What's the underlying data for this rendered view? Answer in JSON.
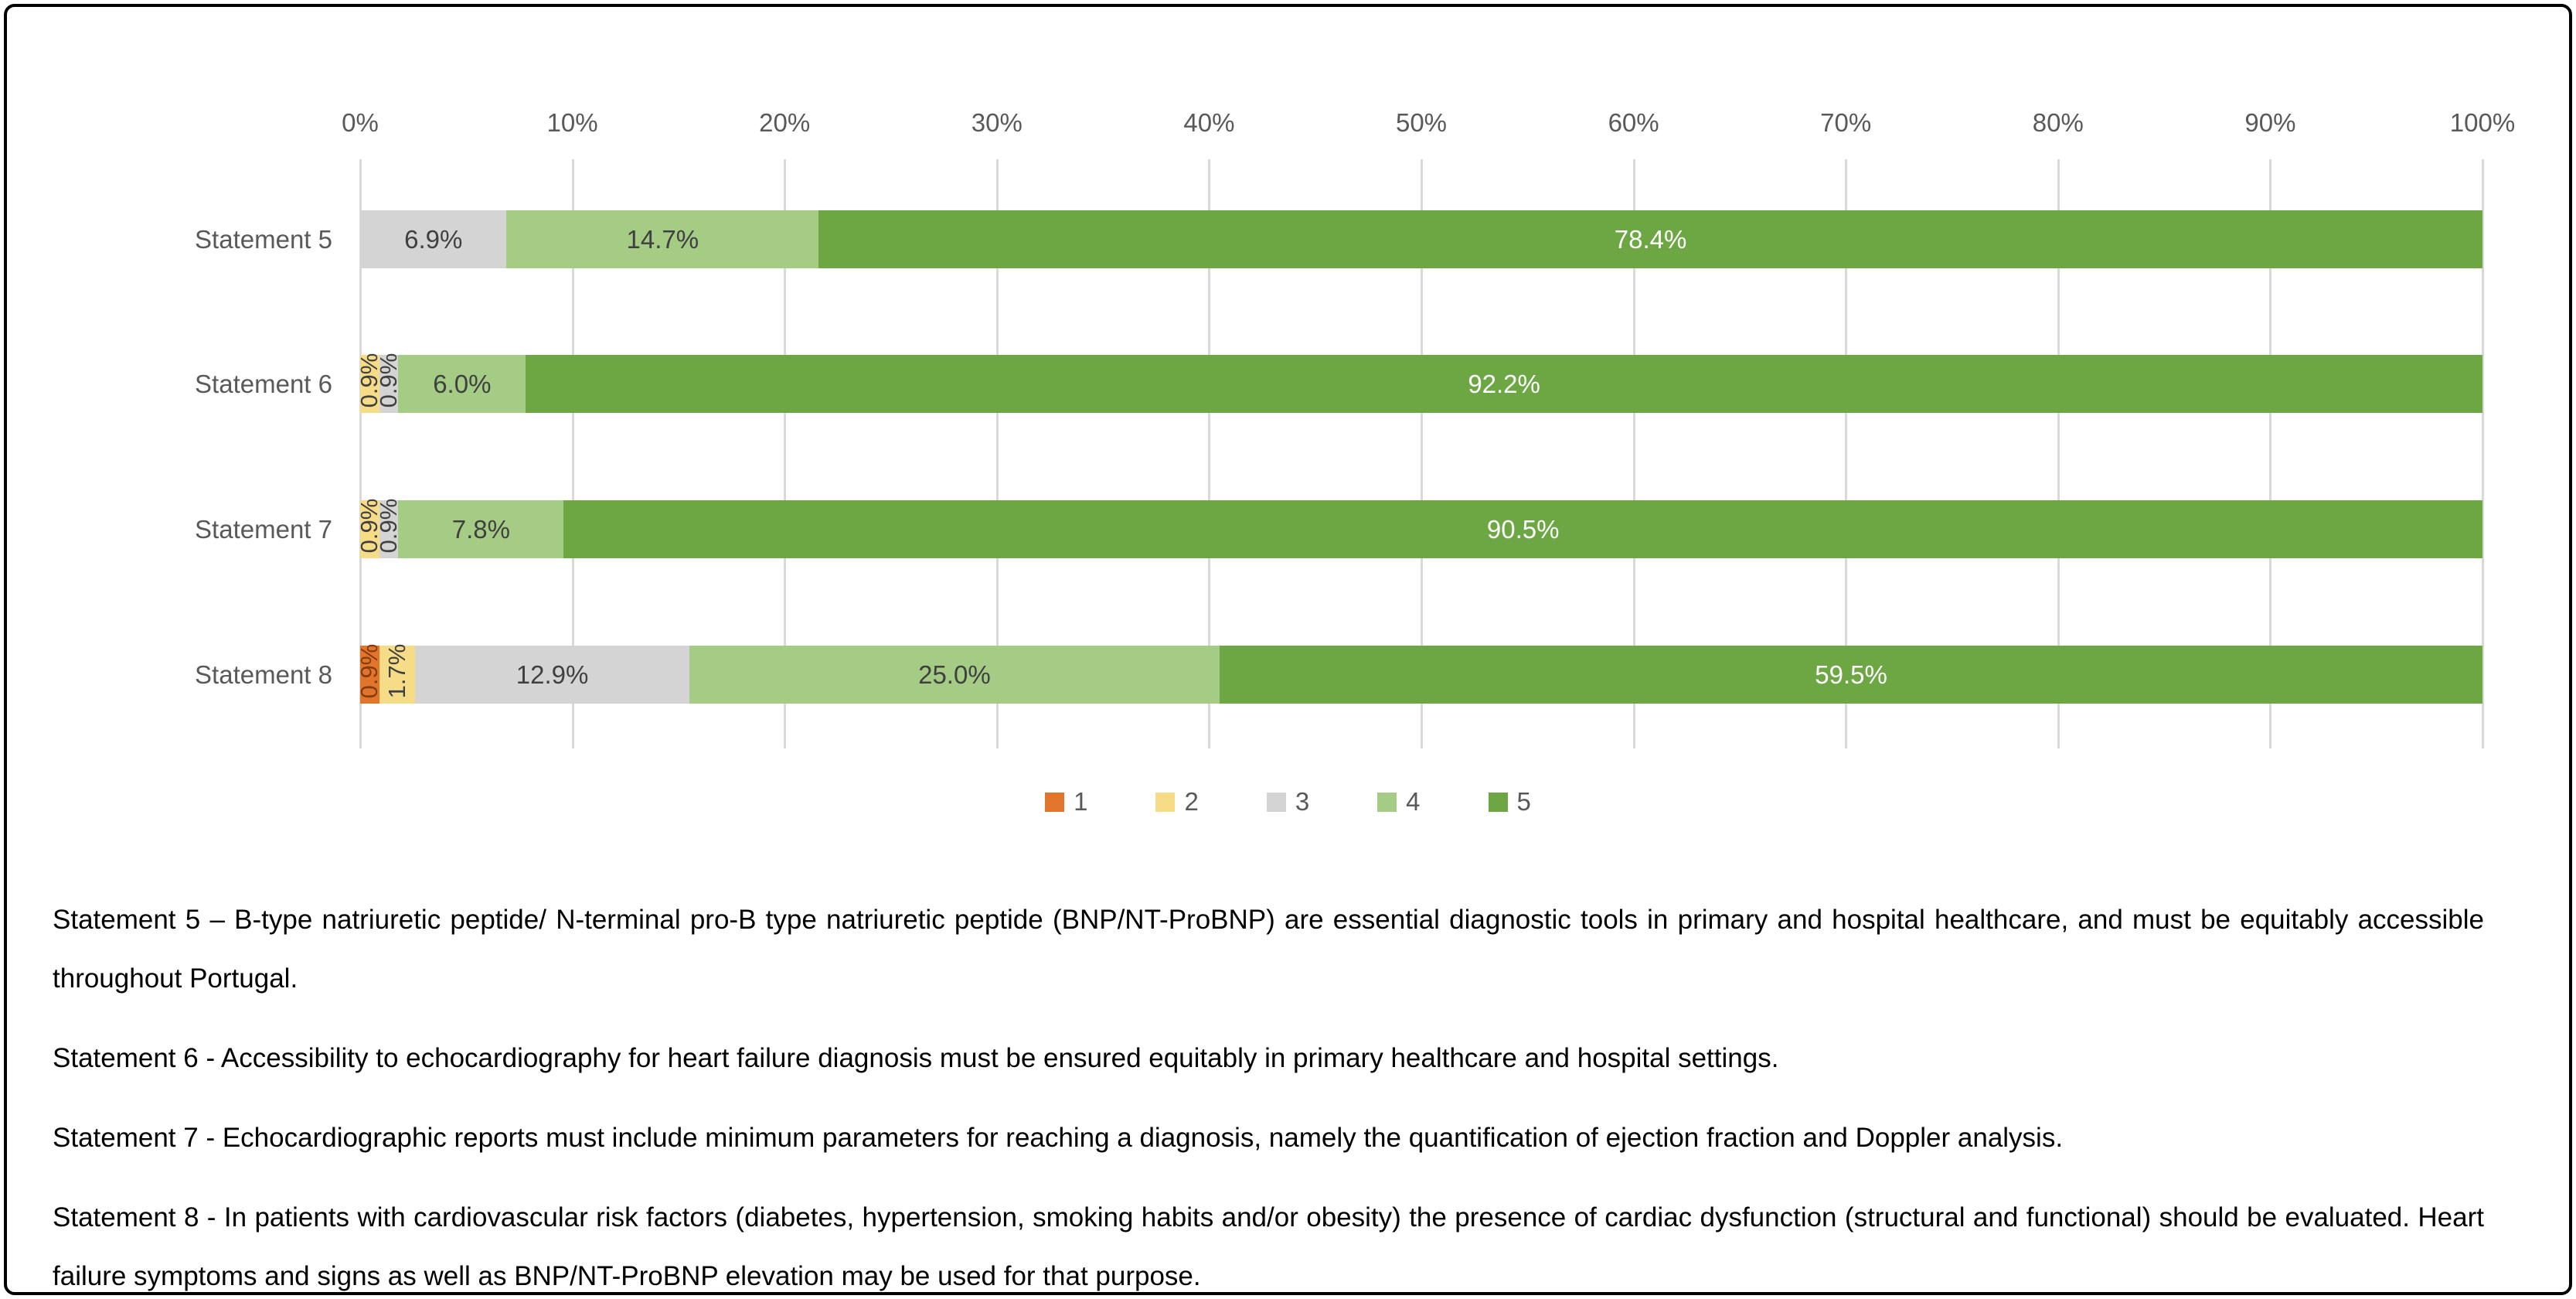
{
  "chart_data": {
    "type": "bar",
    "variant": "horizontal-stacked-100pct",
    "title": "",
    "xlabel": "",
    "ylabel": "",
    "x_axis": {
      "min": 0,
      "max": 100,
      "ticks": [
        "0%",
        "10%",
        "20%",
        "30%",
        "40%",
        "50%",
        "60%",
        "70%",
        "80%",
        "90%",
        "100%"
      ],
      "grid": true
    },
    "legend_position": "bottom",
    "legend": [
      {
        "label": "1",
        "color": "#e1752c"
      },
      {
        "label": "2",
        "color": "#f6dc86"
      },
      {
        "label": "3",
        "color": "#d4d4d4"
      },
      {
        "label": "4",
        "color": "#a4cc85"
      },
      {
        "label": "5",
        "color": "#6ca744"
      }
    ],
    "categories": [
      "Statement 5",
      "Statement 6",
      "Statement 7",
      "Statement 8"
    ],
    "series": [
      {
        "name": "1",
        "color": "#e1752c",
        "values": [
          0,
          0,
          0,
          0.9
        ]
      },
      {
        "name": "2",
        "color": "#f6dc86",
        "values": [
          0,
          0.9,
          0.9,
          1.7
        ]
      },
      {
        "name": "3",
        "color": "#d4d4d4",
        "values": [
          6.9,
          0.9,
          0.9,
          12.9
        ]
      },
      {
        "name": "4",
        "color": "#a4cc85",
        "values": [
          14.7,
          6.0,
          7.8,
          25.0
        ]
      },
      {
        "name": "5",
        "color": "#6ca744",
        "values": [
          78.4,
          92.2,
          90.5,
          59.5
        ]
      }
    ],
    "rows": [
      {
        "category": "Statement 5",
        "segments": [
          {
            "level": "3",
            "value": 6.9,
            "label": "6.9%",
            "rotated": false,
            "label_color": "#404040"
          },
          {
            "level": "4",
            "value": 14.7,
            "label": "14.7%",
            "rotated": false,
            "label_color": "#404040"
          },
          {
            "level": "5",
            "value": 78.4,
            "label": "78.4%",
            "rotated": false,
            "label_color": "#ffffff"
          }
        ]
      },
      {
        "category": "Statement 6",
        "segments": [
          {
            "level": "2",
            "value": 0.9,
            "label": "0.9%",
            "rotated": true,
            "label_color": "#404040"
          },
          {
            "level": "3",
            "value": 0.9,
            "label": "0.9%",
            "rotated": true,
            "label_color": "#404040"
          },
          {
            "level": "4",
            "value": 6.0,
            "label": "6.0%",
            "rotated": false,
            "label_color": "#404040"
          },
          {
            "level": "5",
            "value": 92.2,
            "label": "92.2%",
            "rotated": false,
            "label_color": "#ffffff"
          }
        ]
      },
      {
        "category": "Statement 7",
        "segments": [
          {
            "level": "2",
            "value": 0.9,
            "label": "0.9%",
            "rotated": true,
            "label_color": "#404040"
          },
          {
            "level": "3",
            "value": 0.9,
            "label": "0.9%",
            "rotated": true,
            "label_color": "#404040"
          },
          {
            "level": "4",
            "value": 7.8,
            "label": "7.8%",
            "rotated": false,
            "label_color": "#404040"
          },
          {
            "level": "5",
            "value": 90.5,
            "label": "90.5%",
            "rotated": false,
            "label_color": "#ffffff"
          }
        ]
      },
      {
        "category": "Statement 8",
        "segments": [
          {
            "level": "1",
            "value": 0.9,
            "label": "0.9%",
            "rotated": true,
            "label_color": "#843c0c"
          },
          {
            "level": "2",
            "value": 1.7,
            "label": "1.7%",
            "rotated": true,
            "label_color": "#404040"
          },
          {
            "level": "3",
            "value": 12.9,
            "label": "12.9%",
            "rotated": false,
            "label_color": "#404040"
          },
          {
            "level": "4",
            "value": 25.0,
            "label": "25.0%",
            "rotated": false,
            "label_color": "#404040"
          },
          {
            "level": "5",
            "value": 59.5,
            "label": "59.5%",
            "rotated": false,
            "label_color": "#ffffff"
          }
        ]
      }
    ],
    "level_colors": {
      "1": "#e1752c",
      "2": "#f6dc86",
      "3": "#d4d4d4",
      "4": "#a4cc85",
      "5": "#6ca744"
    }
  },
  "statements": [
    "Statement 5 – B-type natriuretic peptide/ N-terminal pro-B type natriuretic peptide (BNP/NT-ProBNP)  are essential diagnostic tools in primary and hospital healthcare, and must be equitably accessible throughout Portugal.",
    "Statement 6 - Accessibility to echocardiography for heart failure  diagnosis must be ensured equitably in primary healthcare and hospital settings.",
    "Statement 7 - Echocardiographic reports  must include minimum parameters for reaching a diagnosis, namely the quantification of ejection fraction and Doppler analysis.",
    "Statement 8 - In patients with cardiovascular risk factors (diabetes, hypertension, smoking habits and/or obesity) the presence of cardiac dysfunction (structural and functional) should be evaluated. Heart failure symptoms and signs as well as BNP/NT-ProBNP elevation may be used for that purpose."
  ],
  "colors": {
    "axis_text": "#595959",
    "gridline": "#d9d9d9",
    "statement_text": "#000000",
    "frame_border": "#000000"
  }
}
